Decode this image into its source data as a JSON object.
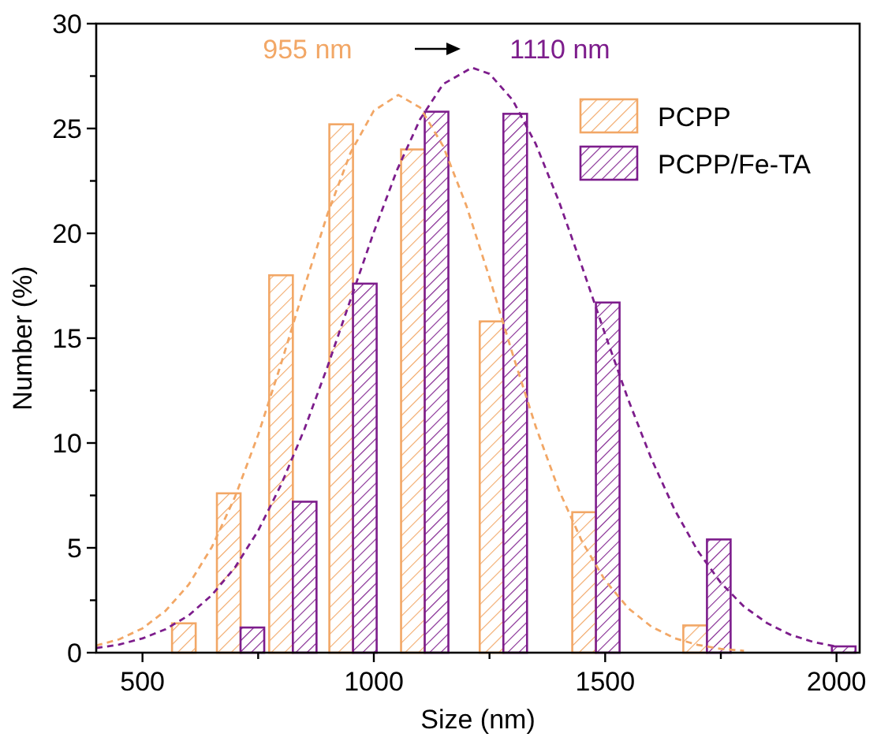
{
  "chart_data": {
    "type": "bar",
    "xlabel": "Size (nm)",
    "ylabel": "Number (%)",
    "x": [
      615,
      712,
      825,
      955,
      1110,
      1280,
      1480,
      1720,
      1990
    ],
    "series": [
      {
        "name": "PCPP",
        "color": "#f2a766",
        "values": [
          1.4,
          7.6,
          18,
          25.2,
          24,
          15.8,
          6.7,
          1.3,
          null
        ]
      },
      {
        "name": "PCPP/Fe-TA",
        "color": "#7d1d8c",
        "values": [
          null,
          1.2,
          7.2,
          17.6,
          25.8,
          25.7,
          16.7,
          5.4,
          0.3
        ]
      },
      {
        "type": "line",
        "color": "#f2a766",
        "line_style": "dashed",
        "x": [
          400,
          450,
          500,
          550,
          600,
          650,
          700,
          750,
          800,
          850,
          900,
          950,
          1000,
          1053,
          1100,
          1150,
          1200,
          1250,
          1300,
          1350,
          1400,
          1450,
          1500,
          1550,
          1600,
          1650,
          1700,
          1750,
          1800
        ],
        "values": [
          0.34,
          0.64,
          1.16,
          2.0,
          3.25,
          5.04,
          7.43,
          10.39,
          13.81,
          17.44,
          20.93,
          23.86,
          25.85,
          26.6,
          26.0,
          24.15,
          21.32,
          17.88,
          14.24,
          10.78,
          7.75,
          5.3,
          3.44,
          2.12,
          1.24,
          0.69,
          0.37,
          0.18,
          0.09
        ]
      },
      {
        "type": "line",
        "color": "#7d1d8c",
        "line_style": "dashed",
        "x": [
          400,
          450,
          500,
          550,
          600,
          650,
          700,
          750,
          800,
          850,
          900,
          950,
          1000,
          1050,
          1100,
          1150,
          1212,
          1250,
          1300,
          1350,
          1400,
          1450,
          1500,
          1550,
          1600,
          1650,
          1700,
          1750,
          1800,
          1850,
          1900,
          1950,
          2000
        ],
        "values": [
          0.22,
          0.39,
          0.68,
          1.12,
          1.78,
          2.75,
          4.07,
          5.82,
          8.03,
          10.66,
          13.65,
          16.86,
          20.06,
          23.01,
          25.44,
          27.12,
          27.9,
          27.61,
          26.36,
          24.26,
          21.53,
          18.41,
          15.18,
          12.06,
          9.24,
          6.82,
          4.86,
          3.33,
          2.2,
          1.41,
          0.86,
          0.51,
          0.29
        ]
      }
    ],
    "annotations": [
      "955 nm",
      "1110 nm"
    ],
    "xlim": [
      400,
      2050
    ],
    "xticks": [
      500,
      {
        "value": 750,
        "label": null
      },
      1000,
      {
        "value": 1250,
        "label": null
      },
      1500,
      {
        "value": 1750,
        "label": null
      },
      2000
    ],
    "ylim": [
      0,
      30
    ],
    "yticks": [
      0,
      {
        "value": 2.5,
        "label": null
      },
      5,
      {
        "value": 7.5,
        "label": null
      },
      10,
      {
        "value": 12.5,
        "label": null
      },
      15,
      {
        "value": 17.5,
        "label": null
      },
      20,
      {
        "value": 22.5,
        "label": null
      },
      25,
      {
        "value": 27.5,
        "label": null
      },
      30
    ],
    "legend": "top right",
    "grid": false
  }
}
